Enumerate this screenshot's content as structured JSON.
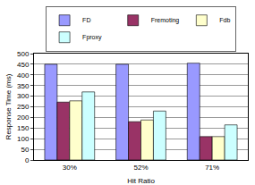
{
  "chart_data": {
    "type": "bar",
    "x_label": "Hit Ratio",
    "y_label": "Response Time (ms)",
    "categories": [
      "30%",
      "52%",
      "71%"
    ],
    "series": [
      {
        "name": "FD",
        "color": "#9999ff",
        "values": [
          450,
          450,
          455
        ]
      },
      {
        "name": "Fremoting",
        "color": "#993366",
        "values": [
          272,
          180,
          110
        ]
      },
      {
        "name": "Fdb",
        "color": "#ffffcc",
        "values": [
          278,
          188,
          110
        ]
      },
      {
        "name": "Fproxy",
        "color": "#ccffff",
        "values": [
          320,
          230,
          165
        ]
      }
    ],
    "ylim": [
      0,
      500
    ],
    "yticks": [
      0,
      50,
      100,
      150,
      200,
      250,
      300,
      350,
      400,
      450,
      500
    ],
    "grid": true,
    "legend": "top"
  }
}
